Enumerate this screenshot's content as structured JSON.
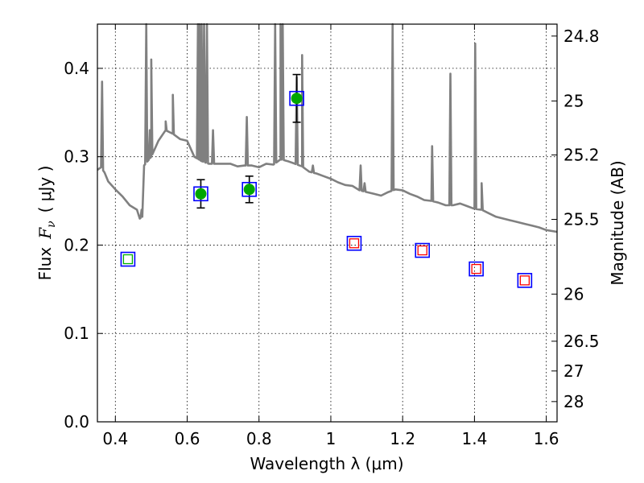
{
  "chart_data": {
    "type": "scatter",
    "xlabel": "Wavelength  λ (μm)",
    "ylabel_text": "Flux",
    "ylabel_math": "F",
    "ylabel_sub": "ν",
    "ylabel_units": "( μJy )",
    "y2label": "Magnitude (AB)",
    "xlim": [
      0.35,
      1.63
    ],
    "ylim": [
      0.0,
      0.45
    ],
    "grid": true,
    "x_ticks": [
      0.4,
      0.6,
      0.8,
      1.0,
      1.2,
      1.4,
      1.6
    ],
    "x_tick_labels": [
      "0.4",
      "0.6",
      "0.8",
      "1",
      "1.2",
      "1.4",
      "1.6"
    ],
    "y_ticks": [
      0.0,
      0.1,
      0.2,
      0.3,
      0.4
    ],
    "y_tick_labels": [
      "0.0",
      "0.1",
      "0.2",
      "0.3",
      "0.4"
    ],
    "y2_ticks": [
      24.8,
      25,
      25.2,
      25.5,
      26,
      26.5,
      27,
      28
    ],
    "y2_tick_labels": [
      "24.8",
      "25",
      "25.2",
      "25.5",
      "26",
      "26.5",
      "27",
      "28"
    ],
    "colors": {
      "model": "#808080",
      "detection_fill": "#00a600",
      "box_outer": "#0000ff",
      "box_inner_detected": "#00b000",
      "box_inner_upper": "#ff0000",
      "errorbar": "#000000"
    },
    "series": [
      {
        "marker": "filled-circle-in-box",
        "x": [
          0.638,
          0.773,
          0.905
        ],
        "y": [
          0.258,
          0.263,
          0.366
        ],
        "yerr": [
          0.016,
          0.015,
          0.027
        ]
      },
      {
        "marker": "open-box-green",
        "x": [
          0.435
        ],
        "y": [
          0.184
        ]
      },
      {
        "marker": "open-box-red",
        "x": [
          1.065,
          1.255,
          1.405,
          1.54
        ],
        "y": [
          0.202,
          0.194,
          0.173,
          0.16
        ]
      },
      {
        "marker": "line",
        "continuum": [
          [
            0.35,
            0.285
          ],
          [
            0.36,
            0.288
          ],
          [
            0.37,
            0.282
          ],
          [
            0.38,
            0.272
          ],
          [
            0.4,
            0.263
          ],
          [
            0.42,
            0.255
          ],
          [
            0.44,
            0.245
          ],
          [
            0.46,
            0.24
          ],
          [
            0.468,
            0.23
          ],
          [
            0.475,
            0.232
          ],
          [
            0.48,
            0.29
          ],
          [
            0.5,
            0.3
          ],
          [
            0.52,
            0.318
          ],
          [
            0.54,
            0.33
          ],
          [
            0.56,
            0.326
          ],
          [
            0.58,
            0.32
          ],
          [
            0.6,
            0.318
          ],
          [
            0.62,
            0.3
          ],
          [
            0.64,
            0.295
          ],
          [
            0.66,
            0.292
          ],
          [
            0.68,
            0.292
          ],
          [
            0.7,
            0.292
          ],
          [
            0.72,
            0.292
          ],
          [
            0.74,
            0.289
          ],
          [
            0.76,
            0.29
          ],
          [
            0.78,
            0.29
          ],
          [
            0.8,
            0.288
          ],
          [
            0.82,
            0.292
          ],
          [
            0.84,
            0.291
          ],
          [
            0.86,
            0.297
          ],
          [
            0.88,
            0.295
          ],
          [
            0.9,
            0.292
          ],
          [
            0.92,
            0.289
          ],
          [
            0.94,
            0.283
          ],
          [
            0.96,
            0.281
          ],
          [
            0.98,
            0.278
          ],
          [
            1.0,
            0.275
          ],
          [
            1.02,
            0.271
          ],
          [
            1.04,
            0.268
          ],
          [
            1.06,
            0.267
          ],
          [
            1.08,
            0.262
          ],
          [
            1.1,
            0.26
          ],
          [
            1.12,
            0.258
          ],
          [
            1.14,
            0.256
          ],
          [
            1.16,
            0.26
          ],
          [
            1.18,
            0.263
          ],
          [
            1.2,
            0.262
          ],
          [
            1.22,
            0.258
          ],
          [
            1.24,
            0.255
          ],
          [
            1.26,
            0.251
          ],
          [
            1.28,
            0.25
          ],
          [
            1.3,
            0.248
          ],
          [
            1.32,
            0.245
          ],
          [
            1.34,
            0.245
          ],
          [
            1.36,
            0.247
          ],
          [
            1.38,
            0.244
          ],
          [
            1.4,
            0.241
          ],
          [
            1.42,
            0.24
          ],
          [
            1.44,
            0.236
          ],
          [
            1.46,
            0.232
          ],
          [
            1.48,
            0.23
          ],
          [
            1.5,
            0.228
          ],
          [
            1.52,
            0.226
          ],
          [
            1.54,
            0.224
          ],
          [
            1.56,
            0.222
          ],
          [
            1.58,
            0.22
          ],
          [
            1.6,
            0.217
          ],
          [
            1.63,
            0.215
          ]
        ],
        "emission_lines": [
          [
            0.363,
            0.385
          ],
          [
            0.473,
            0.24
          ],
          [
            0.486,
            0.46
          ],
          [
            0.496,
            0.33
          ],
          [
            0.5,
            0.41
          ],
          [
            0.54,
            0.34
          ],
          [
            0.56,
            0.37
          ],
          [
            0.63,
            0.46
          ],
          [
            0.634,
            0.46
          ],
          [
            0.64,
            0.46
          ],
          [
            0.647,
            0.46
          ],
          [
            0.655,
            0.46
          ],
          [
            0.672,
            0.33
          ],
          [
            0.766,
            0.345
          ],
          [
            0.845,
            0.46
          ],
          [
            0.86,
            0.46
          ],
          [
            0.866,
            0.46
          ],
          [
            0.905,
            0.39
          ],
          [
            0.92,
            0.415
          ],
          [
            0.95,
            0.29
          ],
          [
            1.083,
            0.29
          ],
          [
            1.094,
            0.27
          ],
          [
            1.172,
            0.46
          ],
          [
            1.282,
            0.312
          ],
          [
            1.333,
            0.394
          ],
          [
            1.402,
            0.428
          ],
          [
            1.42,
            0.27
          ]
        ]
      }
    ]
  }
}
